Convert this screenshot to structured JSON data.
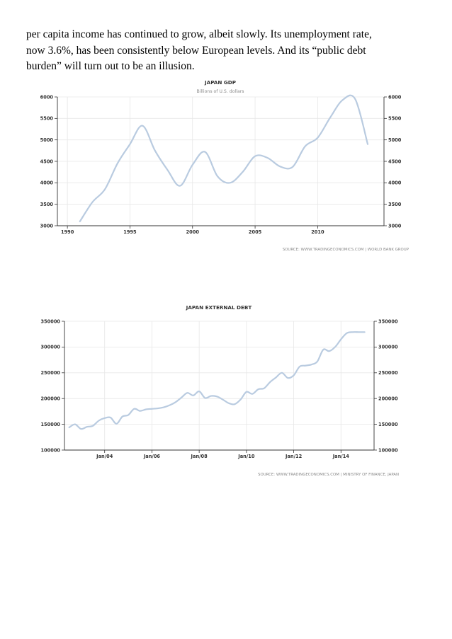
{
  "text": {
    "lines": [
      "per capita income has continued to grow, albeit slowly. Its unemployment rate,",
      "now 3.6%, has been consistently below European levels. And its “public debt",
      "burden” will turn out to be an illusion."
    ]
  },
  "colors": {
    "series": "#b9cbe0",
    "grid": "#e7e7e7",
    "axis": "#333333",
    "muted": "#8a8a8a"
  },
  "chart_data": [
    {
      "type": "line",
      "title": "JAPAN GDP",
      "subtitle": "Billions of U.S. dollars",
      "source": "SOURCE: WWW.TRADINGECONOMICS.COM  |  WORLD BANK GROUP",
      "xlabel": "",
      "ylabel": "Billions of U.S. dollars",
      "xlim": [
        1989.2,
        2015.3
      ],
      "ylim": [
        3000,
        6000
      ],
      "y_ticks": [
        3000,
        3500,
        4000,
        4500,
        5000,
        5500,
        6000
      ],
      "y_tick_labels": [
        "3000",
        "3500",
        "4000",
        "4500",
        "5000",
        "5500",
        "6000"
      ],
      "x_ticks": [
        1990,
        1995,
        2000,
        2005,
        2010
      ],
      "x_tick_labels": [
        "1990",
        "1995",
        "2000",
        "2005",
        "2010"
      ],
      "grid": true,
      "series": [
        {
          "name": "Japan GDP",
          "x": [
            1991,
            1992,
            1993,
            1994,
            1995,
            1996,
            1997,
            1998,
            1999,
            2000,
            2001,
            2002,
            2003,
            2004,
            2005,
            2006,
            2007,
            2008,
            2009,
            2010,
            2011,
            2012,
            2013,
            2014
          ],
          "values": [
            3100,
            3550,
            3850,
            4450,
            4900,
            5330,
            4750,
            4300,
            3930,
            4420,
            4720,
            4150,
            4000,
            4250,
            4620,
            4580,
            4380,
            4370,
            4850,
            5050,
            5520,
            5930,
            5950,
            4900
          ]
        }
      ]
    },
    {
      "type": "line",
      "title": "JAPAN EXTERNAL DEBT",
      "source": "SOURCE: WWW.TRADINGECONOMICS.COM  |  MINISTRY OF FINANCE, JAPAN",
      "xlabel": "",
      "ylabel": "",
      "xlim": [
        2002.3,
        2015.4
      ],
      "ylim": [
        100000,
        350000
      ],
      "y_ticks": [
        100000,
        150000,
        200000,
        250000,
        300000,
        350000
      ],
      "y_tick_labels": [
        "100000",
        "150000",
        "200000",
        "250000",
        "300000",
        "350000"
      ],
      "x_ticks": [
        2004,
        2006,
        2008,
        2010,
        2012,
        2014
      ],
      "x_tick_labels": [
        "Jan/04",
        "Jan/06",
        "Jan/08",
        "Jan/10",
        "Jan/12",
        "Jan/14"
      ],
      "grid": true,
      "series": [
        {
          "name": "Japan External Debt",
          "x": [
            2002.5,
            2002.75,
            2003.0,
            2003.25,
            2003.5,
            2003.75,
            2004.0,
            2004.25,
            2004.5,
            2004.75,
            2005.0,
            2005.25,
            2005.5,
            2005.75,
            2006.0,
            2006.25,
            2006.5,
            2006.75,
            2007.0,
            2007.25,
            2007.5,
            2007.75,
            2008.0,
            2008.25,
            2008.5,
            2008.75,
            2009.0,
            2009.25,
            2009.5,
            2009.75,
            2010.0,
            2010.25,
            2010.5,
            2010.75,
            2011.0,
            2011.25,
            2011.5,
            2011.75,
            2012.0,
            2012.25,
            2012.5,
            2012.75,
            2013.0,
            2013.25,
            2013.5,
            2013.75,
            2014.0,
            2014.25,
            2014.5,
            2014.75,
            2015.0
          ],
          "values": [
            144000,
            150000,
            141000,
            145000,
            147000,
            157000,
            162000,
            163000,
            151000,
            165000,
            168000,
            180000,
            176000,
            179000,
            180000,
            181000,
            183000,
            187000,
            193000,
            202000,
            211000,
            206000,
            214000,
            201000,
            205000,
            204000,
            198000,
            191000,
            189000,
            198000,
            213000,
            209000,
            218000,
            220000,
            232000,
            241000,
            250000,
            240000,
            245000,
            262000,
            264000,
            266000,
            272000,
            295000,
            292000,
            300000,
            315000,
            327000,
            329000,
            329000,
            329000
          ]
        }
      ]
    }
  ]
}
